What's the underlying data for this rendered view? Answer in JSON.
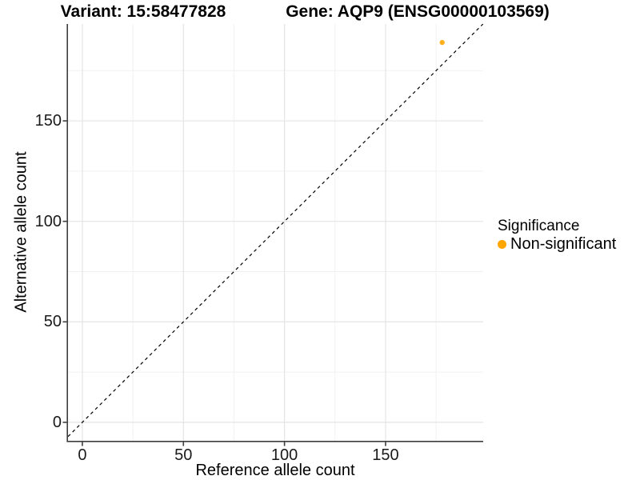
{
  "titles": {
    "variant": "Variant: 15:58477828",
    "gene": "Gene: AQP9 (ENSG00000103569)"
  },
  "colors": {
    "non_significant": "#FFA500",
    "grid_major": "#e4e4e4",
    "grid_minor": "#f1f1f1",
    "axis_line": "#3d3d3d",
    "reference_line": "#000000",
    "background": "#ffffff"
  },
  "chart_data": {
    "type": "scatter",
    "titles": [
      "Variant: 15:58477828",
      "Gene: AQP9 (ENSG00000103569)"
    ],
    "xlabel": "Reference allele count",
    "ylabel": "Alternative allele count",
    "xlim": [
      -7.1,
      198.3
    ],
    "ylim": [
      -9.2,
      198.2
    ],
    "x_ticks": [
      0,
      50,
      100,
      150
    ],
    "y_ticks": [
      0,
      50,
      100,
      150
    ],
    "x_minor_ticks": [
      25,
      75,
      125,
      175
    ],
    "y_minor_ticks": [
      25,
      75,
      125,
      175
    ],
    "grid": true,
    "series": [
      {
        "name": "Non-significant",
        "color": "#FFA500",
        "points": [
          {
            "x": 178,
            "y": 189
          }
        ]
      }
    ],
    "reference_line": {
      "type": "identity",
      "equation": "y = x",
      "style": "dashed",
      "color": "#000000"
    },
    "legend": {
      "title": "Significance",
      "position": "right",
      "items": [
        {
          "label": "Non-significant",
          "color": "#FFA500"
        }
      ]
    }
  }
}
